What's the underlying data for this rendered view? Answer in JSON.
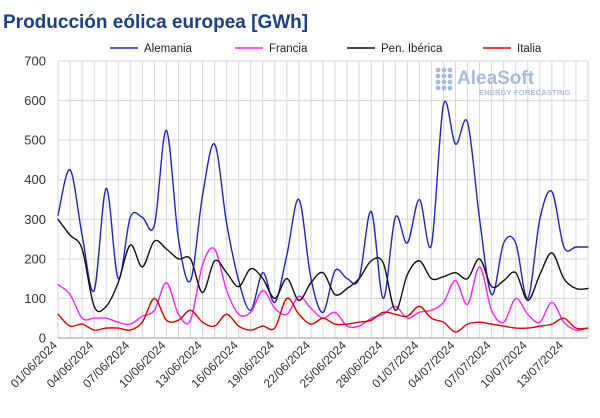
{
  "chart_data": {
    "type": "line",
    "title": "Producción eólica europea [GWh]",
    "ylim": [
      0,
      700
    ],
    "yticks": [
      0,
      100,
      200,
      300,
      400,
      500,
      600,
      700
    ],
    "grid": true,
    "legend_position": "top",
    "x_tick_labels": [
      "01/06/2024",
      "04/06/2024",
      "07/06/2024",
      "10/06/2024",
      "13/06/2024",
      "16/06/2024",
      "19/06/2024",
      "22/06/2024",
      "25/06/2024",
      "28/06/2024",
      "01/07/2024",
      "04/07/2024",
      "07/07/2024",
      "10/07/2024",
      "13/07/2024"
    ],
    "x": [
      "01/06/2024",
      "02/06/2024",
      "03/06/2024",
      "04/06/2024",
      "05/06/2024",
      "06/06/2024",
      "07/06/2024",
      "08/06/2024",
      "09/06/2024",
      "10/06/2024",
      "11/06/2024",
      "12/06/2024",
      "13/06/2024",
      "14/06/2024",
      "15/06/2024",
      "16/06/2024",
      "17/06/2024",
      "18/06/2024",
      "19/06/2024",
      "20/06/2024",
      "21/06/2024",
      "22/06/2024",
      "23/06/2024",
      "24/06/2024",
      "25/06/2024",
      "26/06/2024",
      "27/06/2024",
      "28/06/2024",
      "29/06/2024",
      "30/06/2024",
      "01/07/2024",
      "02/07/2024",
      "03/07/2024",
      "04/07/2024",
      "05/07/2024",
      "06/07/2024",
      "07/07/2024",
      "08/07/2024",
      "09/07/2024",
      "10/07/2024",
      "11/07/2024",
      "12/07/2024",
      "13/07/2024",
      "14/07/2024",
      "15/07/2024"
    ],
    "series": [
      {
        "name": "Alemania",
        "color": "#2222cc",
        "values": [
          310,
          425,
          260,
          120,
          378,
          150,
          305,
          305,
          285,
          525,
          250,
          145,
          360,
          490,
          290,
          145,
          70,
          165,
          90,
          210,
          350,
          150,
          65,
          170,
          150,
          150,
          320,
          100,
          305,
          240,
          350,
          235,
          590,
          490,
          545,
          300,
          110,
          240,
          240,
          100,
          300,
          370,
          230,
          230,
          230
        ]
      },
      {
        "name": "Francia",
        "color": "#ff22ff",
        "values": [
          135,
          110,
          50,
          50,
          50,
          40,
          35,
          55,
          70,
          140,
          60,
          45,
          185,
          225,
          120,
          60,
          65,
          120,
          75,
          60,
          105,
          75,
          50,
          65,
          30,
          30,
          50,
          60,
          80,
          50,
          65,
          70,
          90,
          145,
          85,
          180,
          70,
          40,
          100,
          60,
          40,
          90,
          40,
          20,
          25
        ]
      },
      {
        "name": "Pen. Ibérica",
        "color": "#111111",
        "values": [
          300,
          260,
          225,
          80,
          80,
          140,
          235,
          180,
          245,
          225,
          200,
          200,
          115,
          195,
          165,
          130,
          175,
          150,
          100,
          150,
          95,
          140,
          165,
          110,
          125,
          150,
          195,
          190,
          70,
          160,
          195,
          150,
          155,
          165,
          150,
          200,
          130,
          145,
          165,
          95,
          160,
          215,
          150,
          125,
          125
        ]
      },
      {
        "name": "Italia",
        "color": "#dd0000",
        "values": [
          60,
          30,
          35,
          20,
          25,
          25,
          20,
          40,
          100,
          45,
          45,
          70,
          40,
          30,
          60,
          30,
          20,
          30,
          25,
          100,
          60,
          35,
          50,
          35,
          35,
          40,
          45,
          65,
          60,
          55,
          80,
          50,
          40,
          15,
          35,
          40,
          35,
          30,
          25,
          25,
          30,
          35,
          50,
          25,
          25
        ]
      }
    ]
  },
  "logo": {
    "name": "AleaSoft",
    "tagline": "ENERGY FORECASTING",
    "color": "#a9bbd6"
  }
}
